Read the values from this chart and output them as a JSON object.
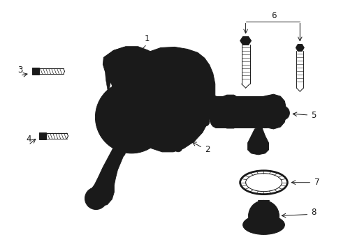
{
  "bg_color": "#ffffff",
  "line_color": "#1a1a1a",
  "figsize": [
    4.89,
    3.6
  ],
  "dpi": 100,
  "label_fs": 8.5,
  "lw": 0.7
}
